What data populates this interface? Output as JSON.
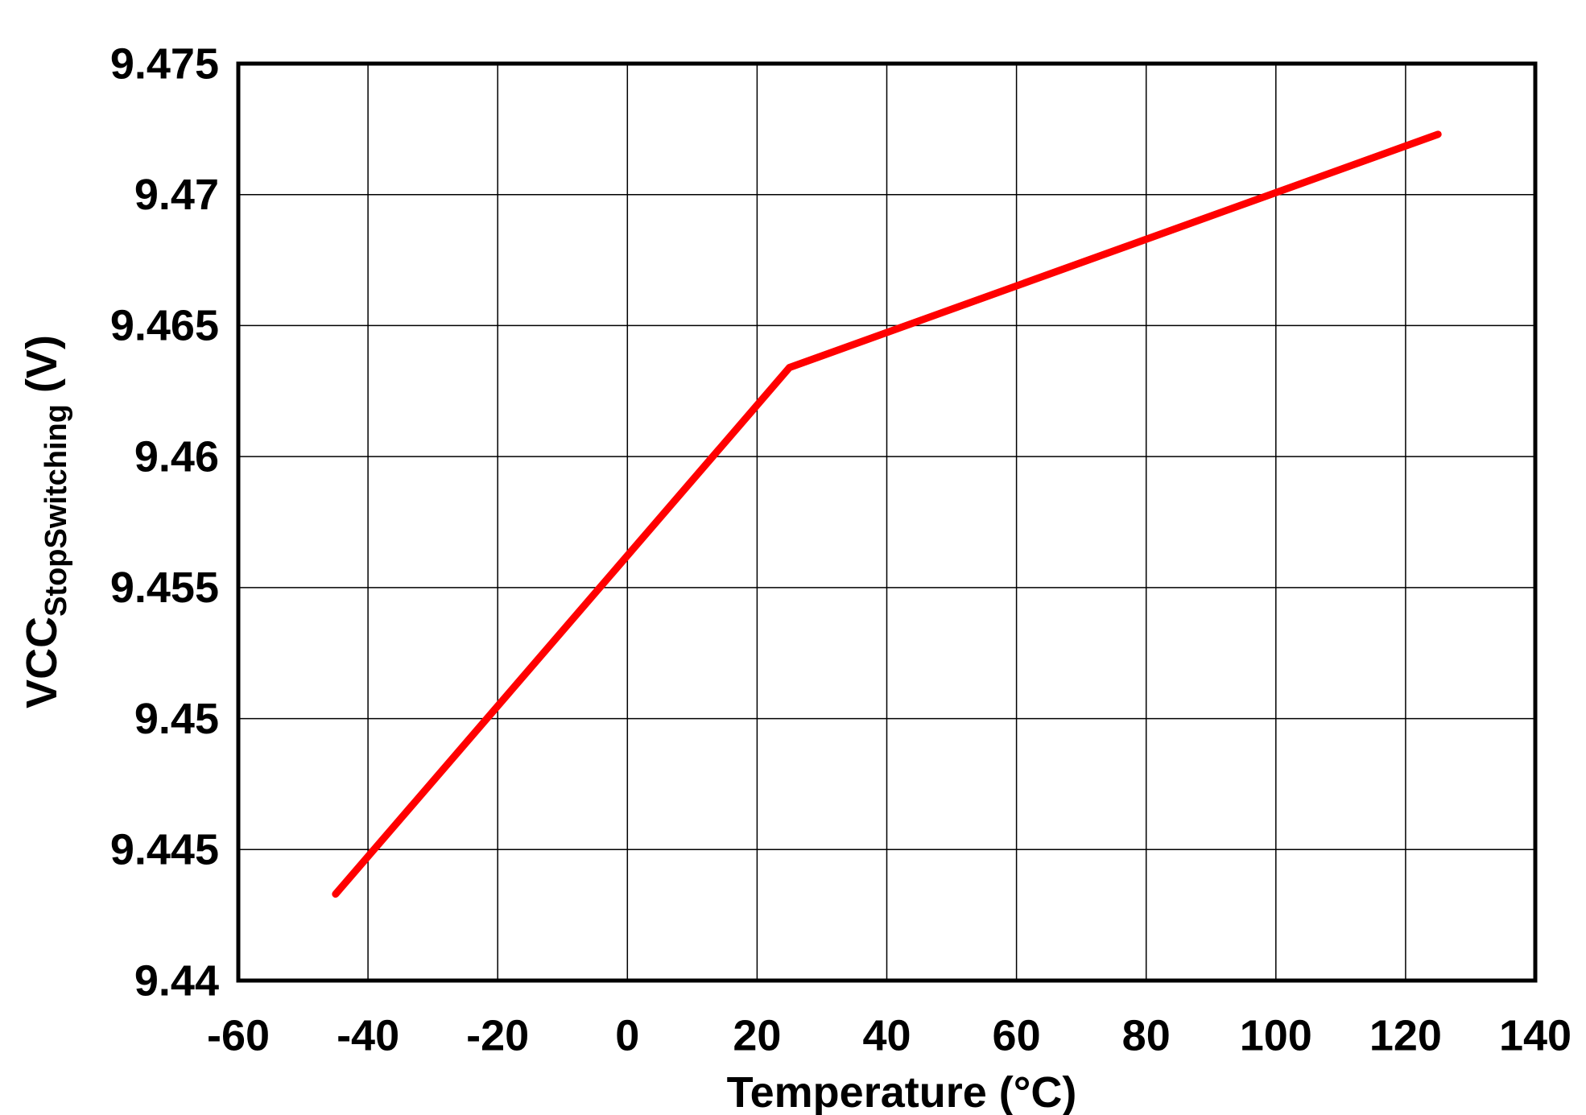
{
  "chart_data": {
    "type": "line",
    "xlabel": "Temperature (°C)",
    "ylabel": "VCC",
    "ylabel_subscript": "StopSwitching",
    "ylabel_unit": "(V)",
    "x": [
      -45,
      25,
      125
    ],
    "series": [
      {
        "color": "#ff0000",
        "values": [
          9.4433,
          9.4634,
          9.4723
        ]
      }
    ],
    "xlim": [
      -60,
      140
    ],
    "xticks": [
      -60,
      -40,
      -20,
      0,
      20,
      40,
      60,
      80,
      100,
      120,
      140
    ],
    "ylim": [
      9.44,
      9.475
    ],
    "yticks": [
      9.44,
      9.445,
      9.45,
      9.455,
      9.46,
      9.465,
      9.47,
      9.475
    ],
    "grid": true
  }
}
